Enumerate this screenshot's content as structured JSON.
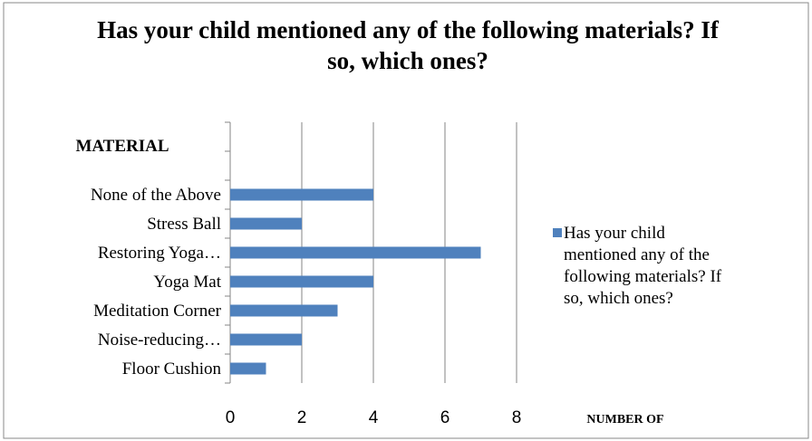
{
  "chart_data": {
    "type": "bar",
    "orientation": "horizontal",
    "title": "Has your child mentioned any of the following materials? If so, which ones?",
    "y_label": "MATERIAL",
    "x_label": "NUMBER OF",
    "categories": [
      null,
      null,
      "None of the Above",
      "Stress Ball",
      "Restoring Yoga…",
      "Yoga Mat",
      "Meditation Corner",
      "Noise-reducing…",
      "Floor Cushion"
    ],
    "series": [
      {
        "name": "Has your child mentioned any of the following materials? If so, which ones?",
        "color": "#4f81bd",
        "values": [
          null,
          null,
          4,
          2,
          7,
          4,
          3,
          2,
          1
        ]
      }
    ],
    "xlim": [
      0,
      8
    ],
    "xticks": [
      0,
      2,
      4,
      6,
      8
    ],
    "grid": true
  }
}
